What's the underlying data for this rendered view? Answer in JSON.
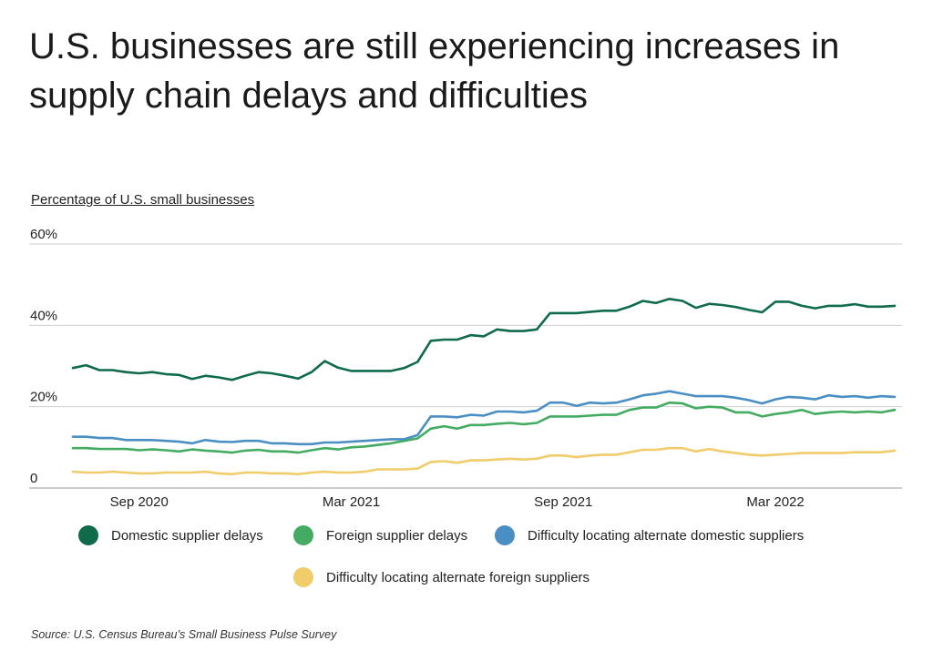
{
  "chart_data": {
    "type": "line",
    "title": "U.S. businesses are still experiencing increases in supply chain delays and difficulties",
    "ylabel": "Percentage of U.S. small businesses",
    "xlabel": "",
    "ylim": [
      0,
      60
    ],
    "yticks": [
      {
        "value": 0,
        "label": "0"
      },
      {
        "value": 20,
        "label": "20%"
      },
      {
        "value": 40,
        "label": "40%"
      },
      {
        "value": 60,
        "label": "60%"
      }
    ],
    "xticks": [
      {
        "index": 5,
        "label": "Sep 2020"
      },
      {
        "index": 21,
        "label": "Mar 2021"
      },
      {
        "index": 37,
        "label": "Sep 2021"
      },
      {
        "index": 53,
        "label": "Mar 2022"
      }
    ],
    "grid": "horizontal",
    "legend_position": "bottom",
    "series": [
      {
        "name": "Domestic supplier delays",
        "color": "#0f6b4a",
        "values": [
          29.5,
          30.2,
          29,
          29,
          28.5,
          28.2,
          28.5,
          28,
          27.8,
          26.8,
          27.6,
          27.2,
          26.6,
          27.6,
          28.5,
          28.2,
          27.6,
          26.9,
          28.5,
          31.2,
          29.6,
          28.8,
          28.8,
          28.8,
          28.8,
          29.5,
          31,
          36.2,
          36.5,
          36.5,
          37.6,
          37.3,
          39,
          38.6,
          38.6,
          39,
          43,
          43,
          43,
          43.3,
          43.6,
          43.6,
          44.6,
          46,
          45.5,
          46.5,
          46,
          44.3,
          45.3,
          45,
          44.5,
          43.8,
          43.2,
          45.8,
          45.8,
          44.8,
          44.2,
          44.8,
          44.8,
          45.2,
          44.6,
          44.6,
          44.8
        ]
      },
      {
        "name": "Foreign supplier delays",
        "color": "#43ac62",
        "values": [
          9.8,
          9.8,
          9.6,
          9.6,
          9.6,
          9.3,
          9.5,
          9.3,
          9,
          9.5,
          9.2,
          9,
          8.7,
          9.2,
          9.4,
          9,
          9,
          8.7,
          9.3,
          9.8,
          9.5,
          10,
          10.2,
          10.6,
          11,
          11.6,
          12.2,
          14.6,
          15.2,
          14.6,
          15.5,
          15.5,
          15.8,
          16,
          15.7,
          16,
          17.6,
          17.6,
          17.6,
          17.8,
          18,
          18,
          19.2,
          19.8,
          19.8,
          21,
          20.8,
          19.6,
          20,
          19.8,
          18.6,
          18.6,
          17.6,
          18.2,
          18.6,
          19.2,
          18.2,
          18.6,
          18.8,
          18.6,
          18.8,
          18.6,
          19.2
        ]
      },
      {
        "name": "Difficulty locating alternate domestic suppliers",
        "color": "#4a8fc4",
        "values": [
          12.6,
          12.6,
          12.3,
          12.3,
          11.8,
          11.8,
          11.8,
          11.6,
          11.4,
          11,
          11.8,
          11.4,
          11.3,
          11.6,
          11.6,
          11,
          11,
          10.8,
          10.8,
          11.2,
          11.2,
          11.4,
          11.6,
          11.8,
          12,
          12,
          13,
          17.6,
          17.6,
          17.4,
          18,
          17.8,
          18.8,
          18.8,
          18.6,
          19,
          21,
          21,
          20.2,
          21,
          20.8,
          21,
          21.8,
          22.8,
          23.2,
          23.8,
          23.2,
          22.6,
          22.6,
          22.6,
          22.2,
          21.6,
          20.8,
          21.8,
          22.4,
          22.2,
          21.8,
          22.8,
          22.4,
          22.6,
          22.2,
          22.6,
          22.4
        ]
      },
      {
        "name": "Difficulty locating alternate foreign suppliers",
        "color": "#f0cc6b",
        "values": [
          4,
          3.8,
          3.8,
          4,
          3.8,
          3.6,
          3.6,
          3.8,
          3.8,
          3.8,
          4,
          3.6,
          3.4,
          3.8,
          3.8,
          3.6,
          3.6,
          3.4,
          3.8,
          4,
          3.8,
          3.8,
          4,
          4.6,
          4.6,
          4.6,
          4.8,
          6.4,
          6.6,
          6.2,
          6.8,
          6.8,
          7,
          7.2,
          7,
          7.2,
          8,
          8,
          7.6,
          8,
          8.2,
          8.2,
          8.8,
          9.4,
          9.4,
          9.8,
          9.8,
          9,
          9.6,
          9,
          8.6,
          8.2,
          8,
          8.2,
          8.4,
          8.6,
          8.6,
          8.6,
          8.6,
          8.8,
          8.8,
          8.8,
          9.2
        ]
      }
    ]
  },
  "source": "Source:  U.S. Census Bureau’s Small Business Pulse Survey"
}
